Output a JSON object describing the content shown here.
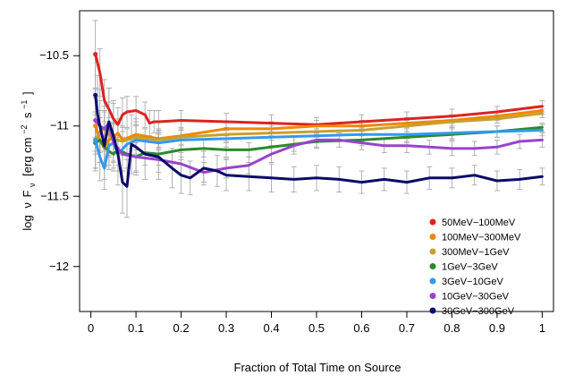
{
  "chart_data": {
    "type": "line",
    "xlabel": "Fraction of Total Time on Source",
    "ylabel": {
      "main": "log",
      "nu": "ν",
      "F": "F",
      "sub": "ν",
      "units_open": "[erg cm",
      "exp1": "−2",
      "units_mid": "s",
      "exp2": "−1",
      "units_close": "]"
    },
    "xlim": [
      -0.025,
      1.025
    ],
    "ylim": [
      -12.32,
      -10.18
    ],
    "xticks": [
      0,
      0.1,
      0.2,
      0.3,
      0.4,
      0.5,
      0.6,
      0.7,
      0.8,
      0.9,
      1
    ],
    "xtick_labels": [
      "0",
      "0.1",
      "0.2",
      "0.3",
      "0.4",
      "0.5",
      "0.6",
      "0.7",
      "0.8",
      "0.9",
      "1"
    ],
    "yticks": [
      -10.5,
      -11,
      -11.5,
      -12
    ],
    "ytick_labels": [
      "−10.5",
      "−11",
      "−11.5",
      "−12"
    ],
    "grid": false,
    "legend_position": "bottom-right",
    "errorbar_color": "#aaaaaa",
    "series": [
      {
        "name": "50MeV−100MeV",
        "color": "#dd2222",
        "x": [
          0.01,
          0.02,
          0.03,
          0.04,
          0.05,
          0.06,
          0.07,
          0.08,
          0.1,
          0.12,
          0.13,
          0.14,
          0.15,
          0.2,
          0.3,
          0.4,
          0.5,
          0.6,
          0.7,
          0.8,
          0.9,
          1.0
        ],
        "y": [
          -10.49,
          -10.62,
          -10.82,
          -10.88,
          -10.95,
          -10.99,
          -10.92,
          -10.9,
          -10.89,
          -10.92,
          -10.98,
          -10.97,
          -10.97,
          -10.96,
          -10.97,
          -10.98,
          -10.99,
          -10.97,
          -10.95,
          -10.93,
          -10.9,
          -10.86
        ],
        "err": [
          0.24,
          0.17,
          0.15,
          0.15,
          0.13,
          0.12,
          0.12,
          0.11,
          0.1,
          0.09,
          0.09,
          0.08,
          0.08,
          0.07,
          0.06,
          0.06,
          0.05,
          0.05,
          0.05,
          0.05,
          0.04,
          0.04
        ]
      },
      {
        "name": "100MeV−300MeV",
        "color": "#ee8800",
        "x": [
          0.01,
          0.02,
          0.03,
          0.04,
          0.05,
          0.06,
          0.07,
          0.1,
          0.15,
          0.2,
          0.3,
          0.4,
          0.5,
          0.6,
          0.7,
          0.8,
          0.9,
          1.0
        ],
        "y": [
          -11.0,
          -11.1,
          -11.16,
          -11.1,
          -11.08,
          -11.05,
          -11.1,
          -11.06,
          -11.09,
          -11.07,
          -11.02,
          -11.02,
          -11.0,
          -11.0,
          -10.98,
          -10.96,
          -10.93,
          -10.89
        ],
        "err": [
          0.2,
          0.16,
          0.13,
          0.12,
          0.11,
          0.1,
          0.1,
          0.09,
          0.07,
          0.06,
          0.05,
          0.05,
          0.04,
          0.04,
          0.04,
          0.04,
          0.03,
          0.03
        ]
      },
      {
        "name": "300MeV−1GeV",
        "color": "#c8a030",
        "x": [
          0.01,
          0.02,
          0.03,
          0.04,
          0.05,
          0.07,
          0.1,
          0.15,
          0.2,
          0.3,
          0.4,
          0.5,
          0.6,
          0.7,
          0.8,
          0.9,
          1.0
        ],
        "y": [
          -11.1,
          -11.04,
          -11.02,
          -11.06,
          -11.09,
          -11.11,
          -11.08,
          -11.1,
          -11.08,
          -11.06,
          -11.05,
          -11.04,
          -11.03,
          -11.0,
          -10.97,
          -10.95,
          -10.91
        ],
        "err": [
          0.2,
          0.15,
          0.13,
          0.12,
          0.11,
          0.1,
          0.09,
          0.07,
          0.06,
          0.05,
          0.05,
          0.04,
          0.04,
          0.04,
          0.04,
          0.03,
          0.03
        ]
      },
      {
        "name": "1GeV−3GeV",
        "color": "#2a8a2a",
        "x": [
          0.01,
          0.02,
          0.03,
          0.04,
          0.05,
          0.06,
          0.08,
          0.1,
          0.12,
          0.15,
          0.2,
          0.25,
          0.3,
          0.35,
          0.4,
          0.45,
          0.5,
          0.6,
          0.7,
          0.8,
          0.9,
          1.0
        ],
        "y": [
          -11.12,
          -11.1,
          -11.15,
          -11.18,
          -11.2,
          -11.17,
          -11.2,
          -11.22,
          -11.19,
          -11.2,
          -11.17,
          -11.16,
          -11.17,
          -11.17,
          -11.15,
          -11.13,
          -11.11,
          -11.1,
          -11.08,
          -11.06,
          -11.04,
          -11.01
        ],
        "err": [
          0.2,
          0.16,
          0.14,
          0.13,
          0.12,
          0.11,
          0.1,
          0.1,
          0.09,
          0.08,
          0.07,
          0.06,
          0.05,
          0.05,
          0.05,
          0.05,
          0.05,
          0.04,
          0.04,
          0.04,
          0.04,
          0.03
        ]
      },
      {
        "name": "3GeV−10GeV",
        "color": "#3399ee",
        "x": [
          0.01,
          0.02,
          0.03,
          0.04,
          0.05,
          0.06,
          0.08,
          0.1,
          0.15,
          0.2,
          0.3,
          0.4,
          0.5,
          0.6,
          0.7,
          0.8,
          0.9,
          1.0
        ],
        "y": [
          -11.1,
          -11.22,
          -11.3,
          -11.14,
          -11.12,
          -11.2,
          -11.13,
          -11.1,
          -11.12,
          -11.1,
          -11.09,
          -11.08,
          -11.07,
          -11.06,
          -11.06,
          -11.05,
          -11.04,
          -11.03
        ],
        "err": [
          0.2,
          0.17,
          0.15,
          0.14,
          0.13,
          0.12,
          0.11,
          0.1,
          0.08,
          0.07,
          0.06,
          0.06,
          0.05,
          0.05,
          0.05,
          0.04,
          0.04,
          0.04
        ]
      },
      {
        "name": "10GeV−30GeV",
        "color": "#9944cc",
        "x": [
          0.01,
          0.02,
          0.03,
          0.04,
          0.05,
          0.07,
          0.1,
          0.15,
          0.2,
          0.25,
          0.3,
          0.35,
          0.4,
          0.45,
          0.5,
          0.55,
          0.6,
          0.65,
          0.7,
          0.75,
          0.8,
          0.85,
          0.9,
          0.95,
          1.0
        ],
        "y": [
          -10.96,
          -11.0,
          -11.02,
          -10.98,
          -11.12,
          -11.2,
          -11.22,
          -11.24,
          -11.27,
          -11.33,
          -11.3,
          -11.28,
          -11.2,
          -11.14,
          -11.1,
          -11.1,
          -11.12,
          -11.14,
          -11.14,
          -11.15,
          -11.16,
          -11.16,
          -11.15,
          -11.11,
          -11.1
        ],
        "err": [
          0.22,
          0.18,
          0.16,
          0.15,
          0.14,
          0.12,
          0.11,
          0.09,
          0.08,
          0.07,
          0.07,
          0.06,
          0.06,
          0.06,
          0.05,
          0.05,
          0.05,
          0.05,
          0.05,
          0.05,
          0.05,
          0.05,
          0.05,
          0.05,
          0.05
        ]
      },
      {
        "name": "30GeV−300GeV",
        "color": "#0a0a6a",
        "x": [
          0.01,
          0.015,
          0.02,
          0.03,
          0.04,
          0.05,
          0.06,
          0.07,
          0.08,
          0.09,
          0.1,
          0.12,
          0.15,
          0.18,
          0.2,
          0.22,
          0.25,
          0.28,
          0.3,
          0.35,
          0.4,
          0.45,
          0.5,
          0.55,
          0.6,
          0.65,
          0.7,
          0.75,
          0.8,
          0.85,
          0.9,
          0.95,
          1.0
        ],
        "y": [
          -10.78,
          -10.92,
          -11.0,
          -11.14,
          -10.97,
          -11.07,
          -11.2,
          -11.4,
          -11.43,
          -11.13,
          -11.15,
          -11.2,
          -11.22,
          -11.3,
          -11.35,
          -11.37,
          -11.3,
          -11.32,
          -11.35,
          -11.36,
          -11.37,
          -11.38,
          -11.37,
          -11.38,
          -11.4,
          -11.38,
          -11.4,
          -11.37,
          -11.37,
          -11.35,
          -11.39,
          -11.38,
          -11.36
        ],
        "err": [
          0.3,
          0.28,
          0.26,
          0.24,
          0.24,
          0.23,
          0.22,
          0.22,
          0.22,
          0.21,
          0.2,
          0.18,
          0.16,
          0.14,
          0.13,
          0.12,
          0.12,
          0.11,
          0.11,
          0.1,
          0.1,
          0.09,
          0.09,
          0.09,
          0.08,
          0.08,
          0.08,
          0.08,
          0.07,
          0.07,
          0.07,
          0.07,
          0.06
        ]
      }
    ]
  }
}
